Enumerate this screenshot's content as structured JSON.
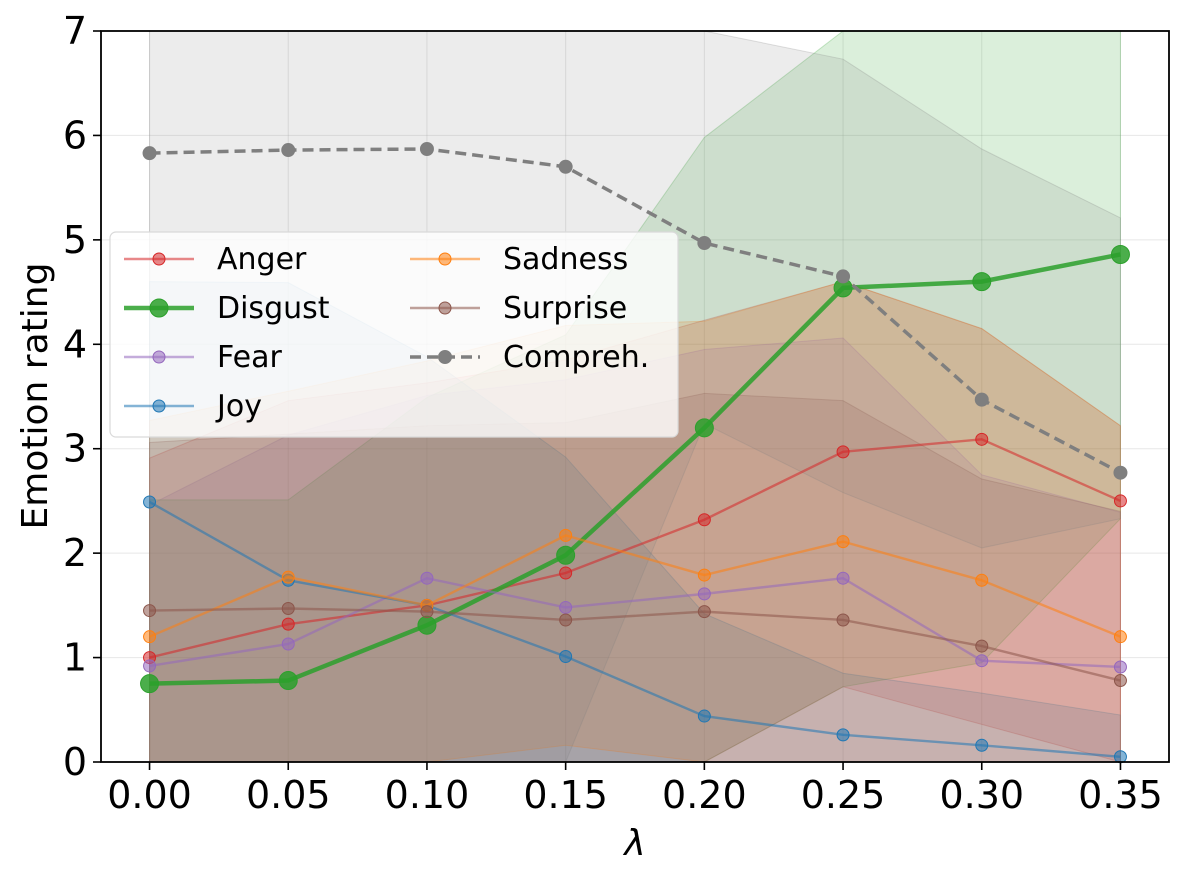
{
  "chart_data": {
    "type": "line",
    "title": "",
    "xlabel": "λ",
    "ylabel": "Emotion rating",
    "x": [
      0.0,
      0.05,
      0.1,
      0.15,
      0.2,
      0.25,
      0.3,
      0.35
    ],
    "x_tick_labels": [
      "0.00",
      "0.05",
      "0.10",
      "0.15",
      "0.20",
      "0.25",
      "0.30",
      "0.35"
    ],
    "xlim": [
      -0.0175,
      0.3675
    ],
    "ylim": [
      0,
      7
    ],
    "y_ticks": [
      0,
      1,
      2,
      3,
      4,
      5,
      6,
      7
    ],
    "y_tick_labels": [
      "0",
      "1",
      "2",
      "3",
      "4",
      "5",
      "6",
      "7"
    ],
    "grid": true,
    "legend_placement": "center-left",
    "series": [
      {
        "name": "Anger",
        "color": "#d62728",
        "style": "thin",
        "values": [
          1.0,
          1.32,
          1.5,
          1.81,
          2.32,
          2.97,
          3.09,
          2.5
        ],
        "band_lower": [
          0,
          0,
          0,
          0,
          0,
          0.72,
          0.36,
          0
        ],
        "band_upper": [
          2.91,
          3.46,
          3.63,
          3.85,
          4.23,
          4.6,
          4.15,
          3.22
        ]
      },
      {
        "name": "Disgust",
        "color": "#2ca02c",
        "style": "bold",
        "values": [
          0.75,
          0.78,
          1.31,
          1.98,
          3.2,
          4.54,
          4.6,
          4.86
        ],
        "band_lower": [
          0,
          0,
          0,
          0,
          0,
          0.72,
          0.95,
          2.33
        ],
        "band_upper": [
          2.51,
          2.51,
          3.49,
          4.09,
          5.98,
          7.0,
          7.0,
          7.0
        ]
      },
      {
        "name": "Fear",
        "color": "#9467bd",
        "style": "thin",
        "values": [
          0.92,
          1.13,
          1.76,
          1.48,
          1.61,
          1.76,
          0.97,
          0.91
        ],
        "band_lower": [
          0,
          0,
          0,
          0,
          0,
          0,
          0,
          0
        ],
        "band_upper": [
          2.46,
          3.13,
          3.51,
          3.66,
          3.95,
          4.06,
          2.75,
          2.39
        ]
      },
      {
        "name": "Joy",
        "color": "#1f77b4",
        "style": "thin",
        "values": [
          2.49,
          1.74,
          1.5,
          1.01,
          0.44,
          0.26,
          0.16,
          0.05
        ],
        "band_lower": [
          0,
          0,
          0,
          0,
          0,
          0,
          0,
          0
        ],
        "band_upper": [
          4.6,
          4.59,
          3.88,
          2.92,
          1.42,
          0.85,
          0.66,
          0.45
        ]
      },
      {
        "name": "Sadness",
        "color": "#ff7f0e",
        "style": "thin",
        "values": [
          1.2,
          1.77,
          1.5,
          2.17,
          1.79,
          2.11,
          1.74,
          1.2
        ],
        "band_lower": [
          0,
          0,
          0,
          0.16,
          0,
          0,
          0,
          0
        ],
        "band_upper": [
          3.27,
          3.55,
          3.84,
          4.18,
          4.22,
          4.6,
          4.15,
          3.22
        ]
      },
      {
        "name": "Surprise",
        "color": "#8c564b",
        "style": "thin",
        "values": [
          1.45,
          1.47,
          1.44,
          1.36,
          1.44,
          1.36,
          1.11,
          0.78
        ],
        "band_lower": [
          0,
          0,
          0,
          0,
          0,
          0,
          0,
          0
        ],
        "band_upper": [
          3.06,
          3.14,
          3.22,
          3.25,
          3.53,
          3.46,
          2.71,
          2.4
        ]
      },
      {
        "name": "Compreh.",
        "color": "#7f7f7f",
        "style": "dashed",
        "values": [
          5.83,
          5.86,
          5.87,
          5.7,
          4.97,
          4.65,
          3.47,
          2.77
        ],
        "band_lower": [
          0,
          0,
          0,
          0,
          3.24,
          2.58,
          2.05,
          2.33
        ],
        "band_upper": [
          7.0,
          7.0,
          7.0,
          7.0,
          7.0,
          6.73,
          5.87,
          5.21
        ]
      }
    ]
  }
}
